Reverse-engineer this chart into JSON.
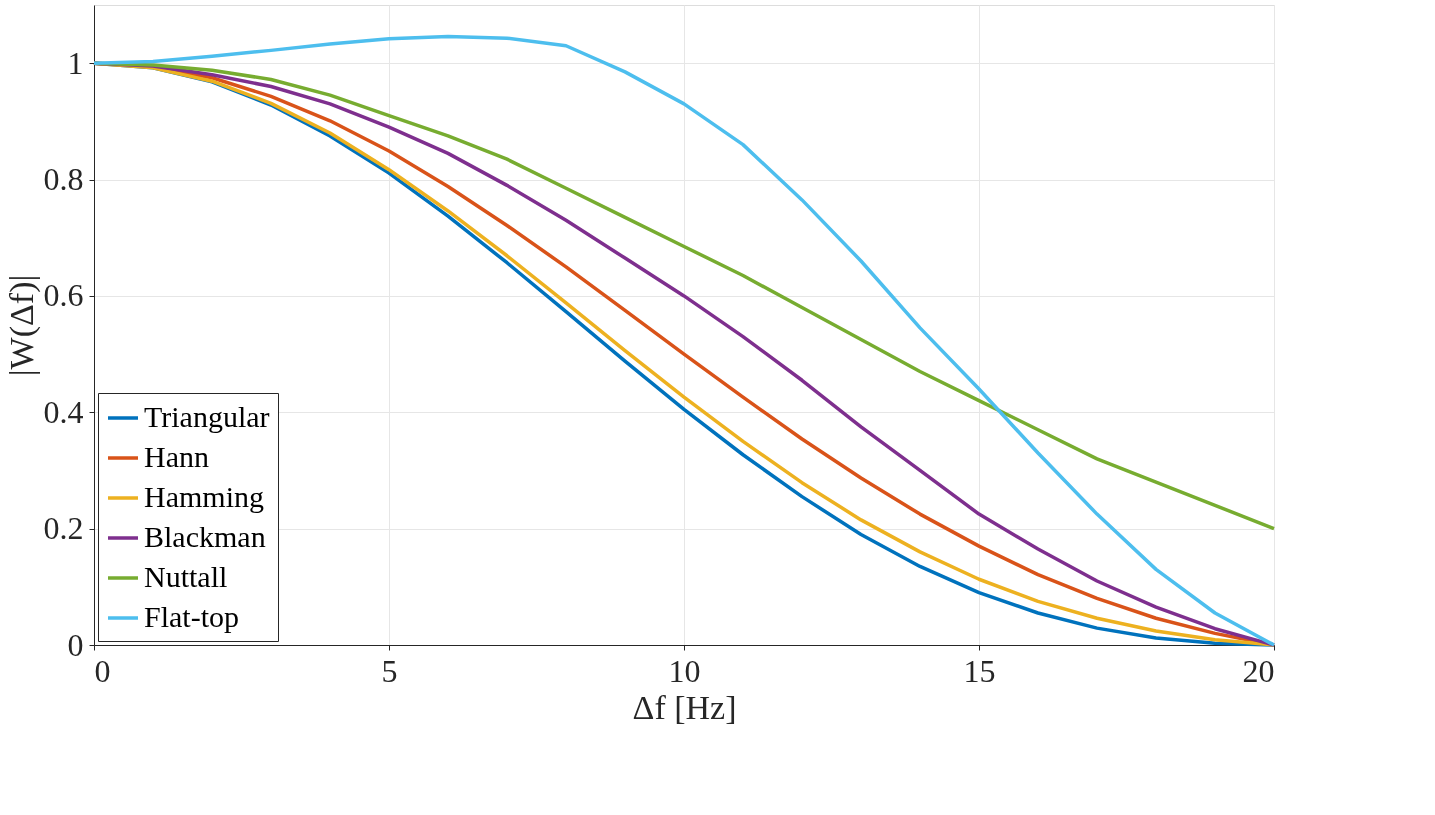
{
  "chart_data": {
    "type": "line",
    "xlabel": "Δf [Hz]",
    "ylabel": "|W(Δf)|",
    "x": [
      0,
      1,
      2,
      3,
      4,
      5,
      6,
      7,
      8,
      9,
      10,
      11,
      12,
      13,
      14,
      15,
      16,
      17,
      18,
      19,
      20
    ],
    "series": [
      {
        "name": "Triangular",
        "color": "#0072bd",
        "values": [
          1,
          0.992,
          0.968,
          0.928,
          0.875,
          0.811,
          0.737,
          0.657,
          0.573,
          0.488,
          0.405,
          0.327,
          0.255,
          0.19,
          0.135,
          0.09,
          0.055,
          0.029,
          0.012,
          0.003,
          0
        ]
      },
      {
        "name": "Hann",
        "color": "#d95319",
        "values": [
          1,
          0.994,
          0.975,
          0.943,
          0.901,
          0.849,
          0.788,
          0.721,
          0.65,
          0.575,
          0.5,
          0.426,
          0.354,
          0.287,
          0.225,
          0.17,
          0.121,
          0.08,
          0.046,
          0.02,
          0
        ]
      },
      {
        "name": "Hamming",
        "color": "#edb120",
        "values": [
          1,
          0.992,
          0.969,
          0.931,
          0.88,
          0.817,
          0.746,
          0.669,
          0.588,
          0.506,
          0.426,
          0.35,
          0.279,
          0.215,
          0.16,
          0.113,
          0.075,
          0.046,
          0.024,
          0.009,
          0
        ]
      },
      {
        "name": "Blackman",
        "color": "#7e2f8e",
        "values": [
          1,
          0.995,
          0.98,
          0.96,
          0.93,
          0.89,
          0.845,
          0.79,
          0.73,
          0.665,
          0.6,
          0.53,
          0.455,
          0.375,
          0.3,
          0.225,
          0.165,
          0.11,
          0.065,
          0.028,
          0
        ]
      },
      {
        "name": "Nuttall",
        "color": "#77ac30",
        "values": [
          1,
          0.997,
          0.988,
          0.972,
          0.945,
          0.91,
          0.875,
          0.835,
          0.785,
          0.735,
          0.685,
          0.635,
          0.58,
          0.525,
          0.47,
          0.42,
          0.37,
          0.32,
          0.28,
          0.24,
          0.2
        ]
      },
      {
        "name": "Flat-top",
        "color": "#4dbeee",
        "values": [
          1,
          1.003,
          1.012,
          1.022,
          1.033,
          1.042,
          1.046,
          1.043,
          1.03,
          0.985,
          0.93,
          0.86,
          0.765,
          0.66,
          0.545,
          0.44,
          0.33,
          0.225,
          0.13,
          0.055,
          0
        ]
      }
    ],
    "xlim": [
      0,
      20
    ],
    "ylim": [
      0,
      1.1
    ],
    "xticks": [
      0,
      5,
      10,
      15,
      20
    ],
    "yticks": [
      0,
      0.2,
      0.4,
      0.6,
      0.8,
      1
    ],
    "grid": true,
    "legend": "bottom left",
    "marker": "none",
    "line_style": "solid"
  }
}
